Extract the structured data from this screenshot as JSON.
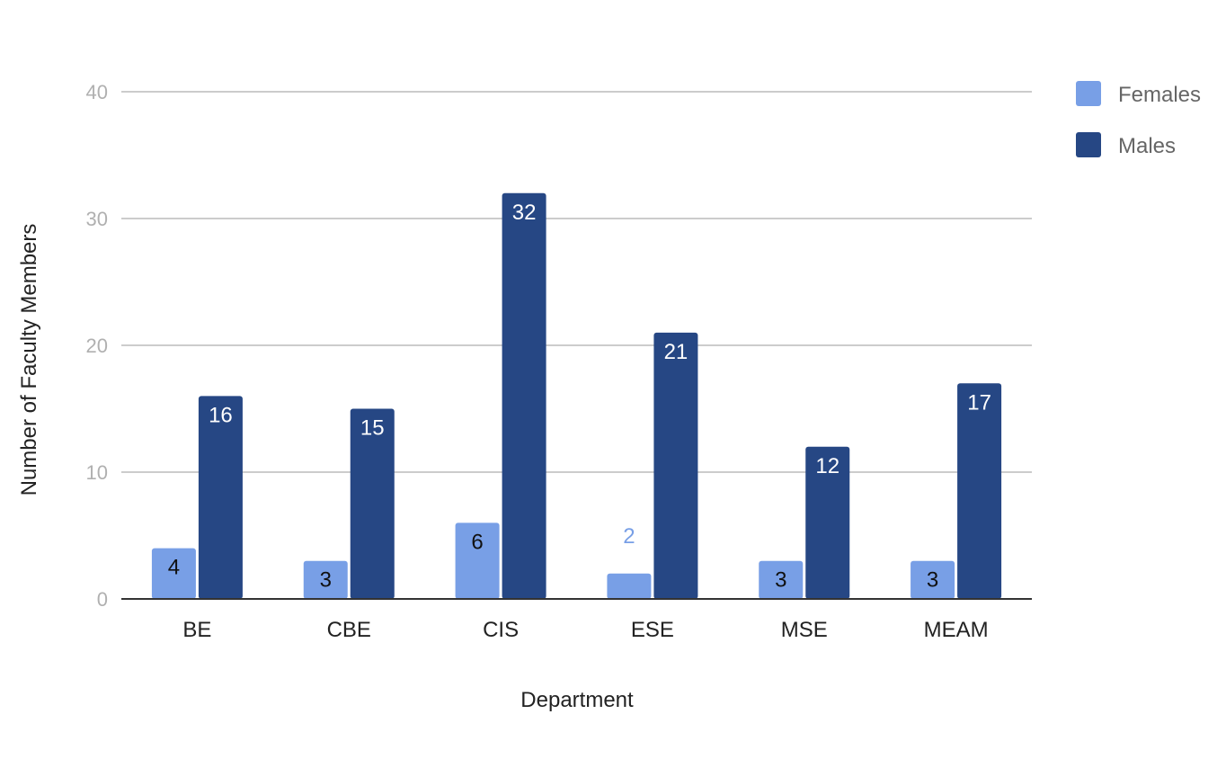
{
  "chart_data": {
    "type": "bar",
    "categories": [
      "BE",
      "CBE",
      "CIS",
      "ESE",
      "MSE",
      "MEAM"
    ],
    "series": [
      {
        "name": "Females",
        "values": [
          4,
          3,
          6,
          2,
          3,
          3
        ],
        "color": "#789fe6"
      },
      {
        "name": "Males",
        "values": [
          16,
          15,
          32,
          21,
          12,
          17
        ],
        "color": "#264784"
      }
    ],
    "xlabel": "Department",
    "ylabel": "Number of Faculty Members",
    "ylim": [
      0,
      40
    ],
    "yticks": [
      0,
      10,
      20,
      30,
      40
    ],
    "grid": true,
    "legend_position": "top-right",
    "data_labels": true
  }
}
